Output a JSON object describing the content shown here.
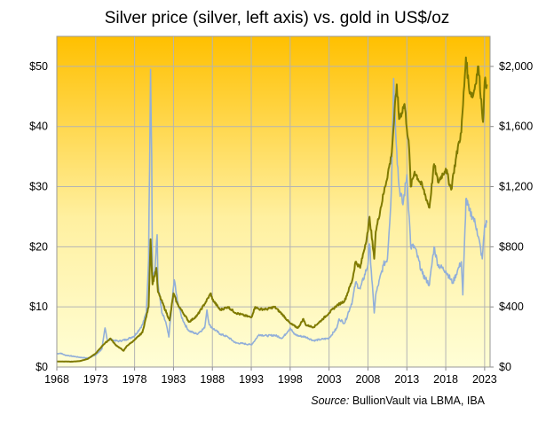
{
  "chart_data": {
    "type": "line",
    "title": "Silver price (silver, left axis) vs. gold in US$/oz",
    "source_label": "Source:",
    "source_text": "BullionVault via LBMA, IBA",
    "grid": true,
    "legend": "none",
    "colors": {
      "silver": "#92afd9",
      "gold": "#7f7a00",
      "bg_top": "#ffc000",
      "bg_bottom": "#fffed6",
      "grid": "#b4b4b4"
    },
    "xlim": [
      1968,
      2023.7
    ],
    "x_ticks": [
      1968,
      1973,
      1978,
      1983,
      1988,
      1993,
      1998,
      2003,
      2008,
      2013,
      2018,
      2023
    ],
    "x_tick_labels": [
      "1968",
      "1973",
      "1978",
      "1983",
      "1988",
      "1993",
      "1998",
      "2003",
      "2008",
      "2013",
      "2018",
      "2023"
    ],
    "y_left": {
      "lim": [
        0,
        55
      ],
      "ticks": [
        0,
        10,
        20,
        30,
        40,
        50
      ],
      "tick_labels": [
        "$0",
        "$10",
        "$20",
        "$30",
        "$40",
        "$50"
      ]
    },
    "y_right": {
      "lim": [
        0,
        2200
      ],
      "ticks": [
        0,
        400,
        800,
        1200,
        1600,
        2000
      ],
      "tick_labels": [
        "$0",
        "$400",
        "$800",
        "$1,200",
        "$1,600",
        "$2,000"
      ]
    },
    "series": [
      {
        "key": "silver",
        "axis": "left",
        "x": [
          1968.0,
          1968.5,
          1969,
          1970,
          1971,
          1972,
          1973,
          1973.8,
          1974.2,
          1974.5,
          1975,
          1976,
          1977,
          1978,
          1979,
          1979.5,
          1979.8,
          1980.05,
          1980.2,
          1980.3,
          1980.6,
          1980.9,
          1981,
          1981.5,
          1982,
          1982.4,
          1982.9,
          1983.1,
          1983.5,
          1984,
          1984.5,
          1985,
          1986,
          1987,
          1987.3,
          1987.6,
          1988,
          1989,
          1990,
          1991,
          1992,
          1993,
          1993.5,
          1994,
          1995,
          1996,
          1997,
          1998,
          1998.5,
          1999,
          2000,
          2001,
          2002,
          2003,
          2004,
          2004.3,
          2005,
          2006,
          2006.4,
          2007,
          2008,
          2008.2,
          2008.8,
          2009,
          2010,
          2010.5,
          2011,
          2011.3,
          2011.7,
          2012,
          2012.5,
          2013,
          2013.3,
          2013.5,
          2014,
          2015,
          2015.9,
          2016.5,
          2017,
          2018,
          2018.9,
          2019.5,
          2020,
          2020.2,
          2020.6,
          2021,
          2021.5,
          2022,
          2022.7,
          2023,
          2023.3
        ],
        "y": [
          2.2,
          2.3,
          2.0,
          1.8,
          1.6,
          1.5,
          2.0,
          3.0,
          6.5,
          4.5,
          4.5,
          4.3,
          4.6,
          5.2,
          7,
          9,
          18,
          49.5,
          35,
          15,
          16,
          22,
          14,
          9,
          7.5,
          5,
          12,
          14.5,
          11,
          8.5,
          7,
          6,
          5.5,
          6.5,
          9.5,
          7,
          6.5,
          5.5,
          5,
          4,
          3.9,
          3.7,
          4.5,
          5.4,
          5.2,
          5.3,
          4.8,
          6.5,
          5.5,
          5.2,
          5.0,
          4.4,
          4.6,
          4.8,
          6.5,
          8,
          7.3,
          11,
          14,
          13,
          17,
          20.5,
          9,
          12,
          17,
          18,
          29,
          48,
          36,
          30,
          27,
          32,
          25,
          20,
          20,
          15.5,
          13.7,
          20,
          17,
          16,
          14,
          16,
          17.5,
          12,
          28,
          26,
          25,
          23,
          18,
          23.5,
          24
        ]
      },
      {
        "key": "gold",
        "axis": "right",
        "x": [
          1968,
          1970,
          1971,
          1972,
          1973,
          1974,
          1974.9,
          1975.5,
          1976.6,
          1977,
          1978,
          1979,
          1979.8,
          1980.05,
          1980.3,
          1980.8,
          1981,
          1982.5,
          1983,
          1983.5,
          1984,
          1985,
          1986,
          1987,
          1987.8,
          1988,
          1989,
          1990,
          1991,
          1992,
          1993,
          1993.5,
          1994,
          1995,
          1996,
          1997,
          1998,
          1999,
          1999.7,
          2000,
          2001,
          2002,
          2003,
          2004,
          2005,
          2006,
          2006.4,
          2007,
          2008,
          2008.2,
          2008.8,
          2009,
          2010,
          2011,
          2011.7,
          2012,
          2012.7,
          2013.3,
          2013.5,
          2014,
          2015,
          2015.9,
          2016.5,
          2017,
          2018,
          2018.7,
          2019,
          2019.7,
          2020,
          2020.6,
          2021,
          2021.5,
          2022.2,
          2022.8,
          2023,
          2023.3
        ],
        "y": [
          37,
          36,
          40,
          55,
          90,
          150,
          190,
          150,
          108,
          140,
          180,
          230,
          400,
          850,
          550,
          660,
          500,
          310,
          490,
          420,
          380,
          300,
          340,
          420,
          490,
          450,
          380,
          400,
          360,
          345,
          330,
          400,
          385,
          385,
          400,
          350,
          290,
          260,
          320,
          280,
          265,
          310,
          360,
          410,
          440,
          580,
          700,
          660,
          900,
          1000,
          720,
          900,
          1150,
          1400,
          1880,
          1650,
          1750,
          1450,
          1200,
          1300,
          1200,
          1060,
          1350,
          1230,
          1320,
          1180,
          1290,
          1500,
          1560,
          2060,
          1850,
          1800,
          2000,
          1630,
          1900,
          1880
        ]
      }
    ]
  }
}
